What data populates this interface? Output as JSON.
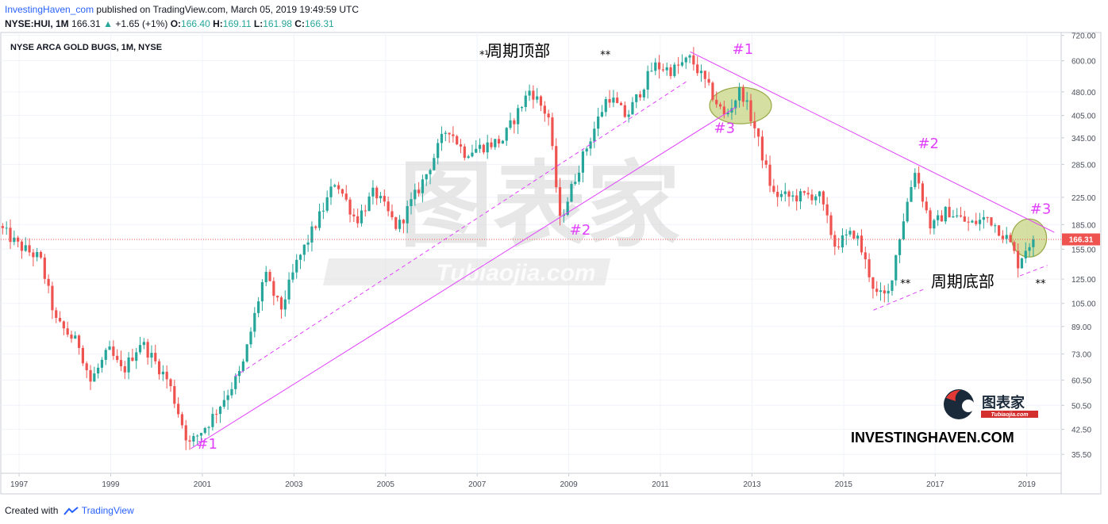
{
  "header": {
    "author": "InvestingHaven_com",
    "published_text": "published on TradingView.com, March 05, 2019 19:49:59 UTC",
    "symbol": "NYSE:HUI, 1M",
    "price": "166.31",
    "change_arrow": "▲",
    "change": "+1.65 (+1%)",
    "o_label": "O:",
    "o_value": "166.40",
    "h_label": "H:",
    "h_value": "169.11",
    "l_label": "L:",
    "l_value": "161.98",
    "c_label": "C:",
    "c_value": "166.31"
  },
  "footer": {
    "created_with": "Created with",
    "tradingview": "TradingView"
  },
  "chart_data": {
    "type": "candlestick",
    "title": "NYSE ARCA GOLD BUGS, 1M, NYSE",
    "y_scale": "log",
    "ylim": [
      31.0,
      735.0
    ],
    "y_ticks": [
      "35.50",
      "42.50",
      "50.50",
      "60.50",
      "73.00",
      "89.00",
      "105.00",
      "125.00",
      "155.00",
      "185.00",
      "225.00",
      "285.00",
      "345.00",
      "405.00",
      "480.00",
      "600.00",
      "720.00"
    ],
    "x_ticks": [
      "1997",
      "1999",
      "2001",
      "2003",
      "2005",
      "2007",
      "2009",
      "2011",
      "2013",
      "2015",
      "2017",
      "2019"
    ],
    "xlim": [
      1996.6,
      2019.75
    ],
    "last_price_label": "166.31",
    "last_price": 166.31,
    "key_points": [
      {
        "x": 1996.6,
        "y": 183
      },
      {
        "x": 1997.0,
        "y": 160
      },
      {
        "x": 1997.5,
        "y": 145
      },
      {
        "x": 1997.85,
        "y": 92
      },
      {
        "x": 1998.35,
        "y": 78
      },
      {
        "x": 1998.6,
        "y": 60
      },
      {
        "x": 1999.0,
        "y": 75
      },
      {
        "x": 1999.3,
        "y": 64
      },
      {
        "x": 1999.7,
        "y": 80
      },
      {
        "x": 2000.3,
        "y": 60
      },
      {
        "x": 2000.75,
        "y": 38
      },
      {
        "x": 2001.2,
        "y": 45
      },
      {
        "x": 2001.9,
        "y": 65
      },
      {
        "x": 2002.4,
        "y": 130
      },
      {
        "x": 2002.75,
        "y": 100
      },
      {
        "x": 2003.1,
        "y": 140
      },
      {
        "x": 2003.7,
        "y": 210
      },
      {
        "x": 2003.95,
        "y": 255
      },
      {
        "x": 2004.4,
        "y": 190
      },
      {
        "x": 2004.8,
        "y": 235
      },
      {
        "x": 2005.3,
        "y": 180
      },
      {
        "x": 2005.9,
        "y": 260
      },
      {
        "x": 2006.4,
        "y": 375
      },
      {
        "x": 2006.75,
        "y": 310
      },
      {
        "x": 2007.6,
        "y": 340
      },
      {
        "x": 2008.2,
        "y": 490
      },
      {
        "x": 2008.6,
        "y": 400
      },
      {
        "x": 2008.85,
        "y": 190
      },
      {
        "x": 2009.3,
        "y": 290
      },
      {
        "x": 2009.9,
        "y": 470
      },
      {
        "x": 2010.3,
        "y": 400
      },
      {
        "x": 2010.9,
        "y": 580
      },
      {
        "x": 2011.3,
        "y": 560
      },
      {
        "x": 2011.7,
        "y": 610
      },
      {
        "x": 2012.0,
        "y": 520
      },
      {
        "x": 2012.45,
        "y": 400
      },
      {
        "x": 2012.8,
        "y": 490
      },
      {
        "x": 2013.1,
        "y": 370
      },
      {
        "x": 2013.5,
        "y": 230
      },
      {
        "x": 2013.9,
        "y": 225
      },
      {
        "x": 2014.5,
        "y": 230
      },
      {
        "x": 2014.85,
        "y": 160
      },
      {
        "x": 2015.3,
        "y": 175
      },
      {
        "x": 2015.75,
        "y": 112
      },
      {
        "x": 2016.0,
        "y": 110
      },
      {
        "x": 2016.3,
        "y": 180
      },
      {
        "x": 2016.6,
        "y": 275
      },
      {
        "x": 2016.95,
        "y": 180
      },
      {
        "x": 2017.3,
        "y": 205
      },
      {
        "x": 2017.8,
        "y": 185
      },
      {
        "x": 2018.2,
        "y": 195
      },
      {
        "x": 2018.65,
        "y": 165
      },
      {
        "x": 2018.85,
        "y": 140
      },
      {
        "x": 2019.0,
        "y": 155
      },
      {
        "x": 2019.17,
        "y": 166.31
      }
    ],
    "trend_lines": [
      {
        "style": "solid",
        "from": {
          "x": 2000.75,
          "y": 37
        },
        "to": {
          "x": 2012.65,
          "y": 430
        }
      },
      {
        "style": "dashed",
        "from": {
          "x": 2001.7,
          "y": 62
        },
        "to": {
          "x": 2011.6,
          "y": 520
        }
      },
      {
        "style": "solid",
        "from": {
          "x": 2011.65,
          "y": 640
        },
        "to": {
          "x": 2019.6,
          "y": 175
        }
      },
      {
        "style": "dashed",
        "from": {
          "x": 2015.65,
          "y": 100
        },
        "to": {
          "x": 2016.8,
          "y": 117
        }
      },
      {
        "style": "dashed",
        "from": {
          "x": 2018.85,
          "y": 128
        },
        "to": {
          "x": 2019.45,
          "y": 138
        }
      }
    ],
    "circles": [
      {
        "cx": 2012.75,
        "cy": 435
      },
      {
        "cx": 2019.05,
        "cy": 168
      }
    ],
    "annotations": [
      {
        "text": "#1",
        "x": 2001.1,
        "y": 37,
        "color": "#e040fb"
      },
      {
        "text": "#2",
        "x": 2009.25,
        "y": 172,
        "color": "#e040fb"
      },
      {
        "text": "#1",
        "x": 2012.8,
        "y": 630,
        "color": "#e040fb"
      },
      {
        "text": "#3",
        "x": 2012.4,
        "y": 358,
        "color": "#e040fb"
      },
      {
        "text": "#2",
        "x": 2016.85,
        "y": 320,
        "color": "#e040fb"
      },
      {
        "text": "#3",
        "x": 2019.3,
        "y": 200,
        "color": "#e040fb"
      },
      {
        "text": "周期顶部",
        "x": 2007.9,
        "y": 620,
        "color": "#000000"
      },
      {
        "text": "周期底部",
        "x": 2017.6,
        "y": 118,
        "color": "#000000"
      },
      {
        "text": "*¹",
        "x": 2007.15,
        "y": 610,
        "color": "#000000"
      },
      {
        "text": "**",
        "x": 2009.8,
        "y": 610,
        "color": "#000000"
      },
      {
        "text": "**",
        "x": 2016.35,
        "y": 118,
        "color": "#000000"
      },
      {
        "text": "**",
        "x": 2019.3,
        "y": 118,
        "color": "#000000"
      }
    ],
    "watermark": {
      "text": "图表家",
      "subtext": "Tubiaojia.com"
    },
    "logo": {
      "text": "图表家",
      "subtext": "Tubiaojia.com"
    },
    "brand": "INVESTINGHAVEN.COM",
    "colors": {
      "up": "#26a69a",
      "down": "#ef5350",
      "trend": "#e040fb",
      "price_line": "#ef5350",
      "circle_fill": "#c5d17a",
      "circle_stroke": "#9aa845"
    }
  }
}
